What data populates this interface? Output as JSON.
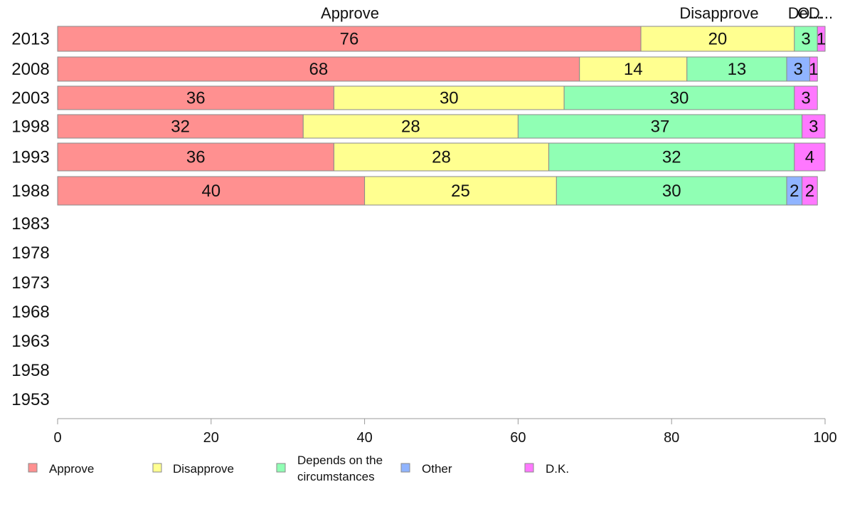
{
  "chart_data": {
    "type": "bar",
    "orientation": "horizontal",
    "stacked": true,
    "categories": [
      "2013",
      "2008",
      "2003",
      "1998",
      "1993",
      "1988",
      "1983",
      "1978",
      "1973",
      "1968",
      "1963",
      "1958",
      "1953"
    ],
    "series": [
      {
        "name": "Approve",
        "color": "#ff9090",
        "values": [
          76,
          68,
          36,
          32,
          36,
          40,
          null,
          null,
          null,
          null,
          null,
          null,
          null
        ]
      },
      {
        "name": "Disapprove",
        "color": "#ffff90",
        "values": [
          20,
          14,
          30,
          28,
          28,
          25,
          null,
          null,
          null,
          null,
          null,
          null,
          null
        ]
      },
      {
        "name": "Depends on the circumstances",
        "color": "#90ffb4",
        "values": [
          3,
          13,
          30,
          37,
          32,
          30,
          null,
          null,
          null,
          null,
          null,
          null,
          null
        ]
      },
      {
        "name": "Other",
        "color": "#90b4ff",
        "values": [
          0,
          3,
          0,
          0,
          0,
          2,
          null,
          null,
          null,
          null,
          null,
          null,
          null
        ]
      },
      {
        "name": "D.K.",
        "color": "#ff78ff",
        "values": [
          1,
          1,
          3,
          3,
          4,
          2,
          null,
          null,
          null,
          null,
          null,
          null,
          null
        ]
      }
    ],
    "column_headers": [
      "Approve",
      "Disapprove",
      "De...",
      "O...",
      "D..."
    ],
    "legend_labels": [
      "Approve",
      "Disapprove",
      "Depends on the",
      "circumstances",
      "Other",
      "D.K."
    ],
    "xlim": [
      0,
      100
    ],
    "xticks": [
      "0",
      "20",
      "40",
      "60",
      "80",
      "100"
    ],
    "legend_position": "bottom",
    "grid": false
  }
}
